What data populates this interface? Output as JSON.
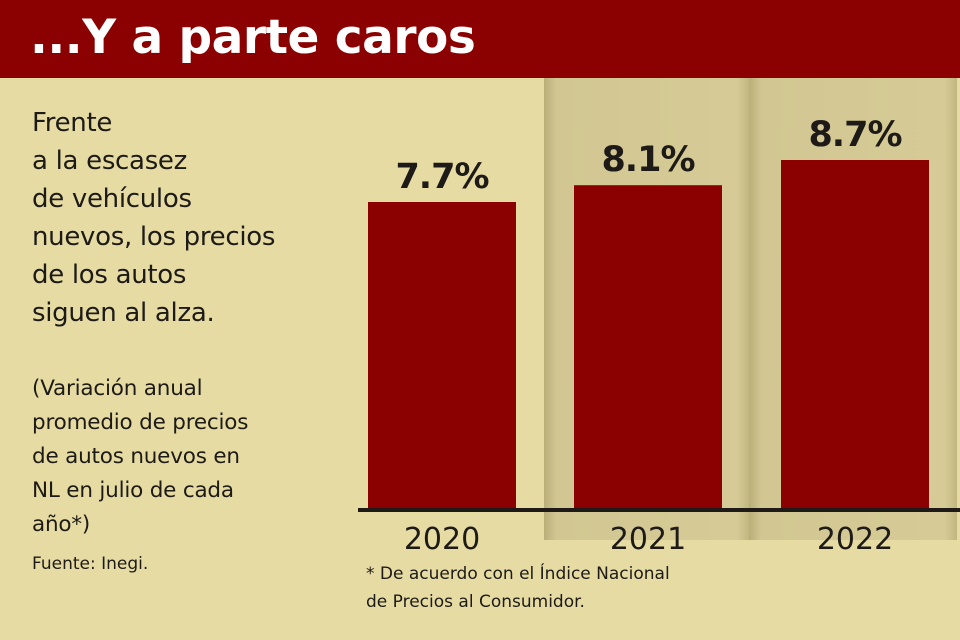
{
  "header": {
    "title": "...Y a parte caros"
  },
  "description": "Frente\na la escasez\nde vehículos\nnuevos, los precios\nde los autos\nsiguen al alza.",
  "note": "(Variación anual\npromedio de precios\nde autos nuevos en\nNL en julio de cada\naño*)",
  "source": "Fuente: Inegi.",
  "footnote": "* De acuerdo con el Índice Nacional\nde Precios al Consumidor.",
  "colors": {
    "banner": "#8b0000",
    "bar": "#8b0000",
    "background": "#e5dba3",
    "panel": "#d4c994"
  },
  "chart_data": {
    "type": "bar",
    "title": "",
    "xlabel": "",
    "ylabel": "",
    "categories": [
      "2020",
      "2021",
      "2022"
    ],
    "values": [
      7.7,
      8.1,
      8.7
    ],
    "value_labels": [
      "7.7%",
      "8.1%",
      "8.7%"
    ],
    "ylim": [
      0,
      10
    ],
    "grid": false,
    "legend": "none"
  }
}
